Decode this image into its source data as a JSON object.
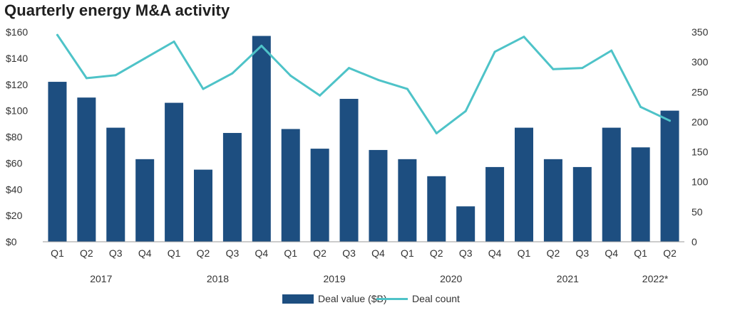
{
  "chart_data": {
    "type": "bar+line",
    "title": "Quarterly energy M&A activity",
    "categories": [
      "Q1",
      "Q2",
      "Q3",
      "Q4",
      "Q1",
      "Q2",
      "Q3",
      "Q4",
      "Q1",
      "Q2",
      "Q3",
      "Q4",
      "Q1",
      "Q2",
      "Q3",
      "Q4",
      "Q1",
      "Q2",
      "Q3",
      "Q4",
      "Q1",
      "Q2"
    ],
    "years": [
      {
        "label": "2017",
        "start": 0,
        "end": 3
      },
      {
        "label": "2018",
        "start": 4,
        "end": 7
      },
      {
        "label": "2019",
        "start": 8,
        "end": 11
      },
      {
        "label": "2020",
        "start": 12,
        "end": 15
      },
      {
        "label": "2021",
        "start": 16,
        "end": 19
      },
      {
        "label": "2022*",
        "start": 20,
        "end": 21
      }
    ],
    "series": [
      {
        "name": "Deal value ($B)",
        "type": "bar",
        "axis": "left",
        "color": "#1d4e80",
        "values": [
          122,
          110,
          87,
          63,
          106,
          55,
          83,
          157,
          86,
          71,
          109,
          70,
          63,
          50,
          27,
          57,
          87,
          63,
          57,
          87,
          72,
          100
        ]
      },
      {
        "name": "Deal count",
        "type": "line",
        "axis": "right",
        "color": "#4ec3c8",
        "values": [
          345,
          273,
          278,
          306,
          334,
          255,
          281,
          327,
          277,
          244,
          290,
          270,
          255,
          181,
          218,
          317,
          342,
          288,
          290,
          319,
          225,
          202
        ]
      }
    ],
    "y_left": {
      "min": 0,
      "max": 160,
      "ticks": [
        "$0",
        "$20",
        "$40",
        "$60",
        "$80",
        "$100",
        "$120",
        "$140",
        "$160"
      ]
    },
    "y_right": {
      "min": 0,
      "max": 350,
      "ticks": [
        "0",
        "50",
        "100",
        "150",
        "200",
        "250",
        "300",
        "350"
      ]
    },
    "grid": false,
    "legend_position": "bottom-center"
  }
}
